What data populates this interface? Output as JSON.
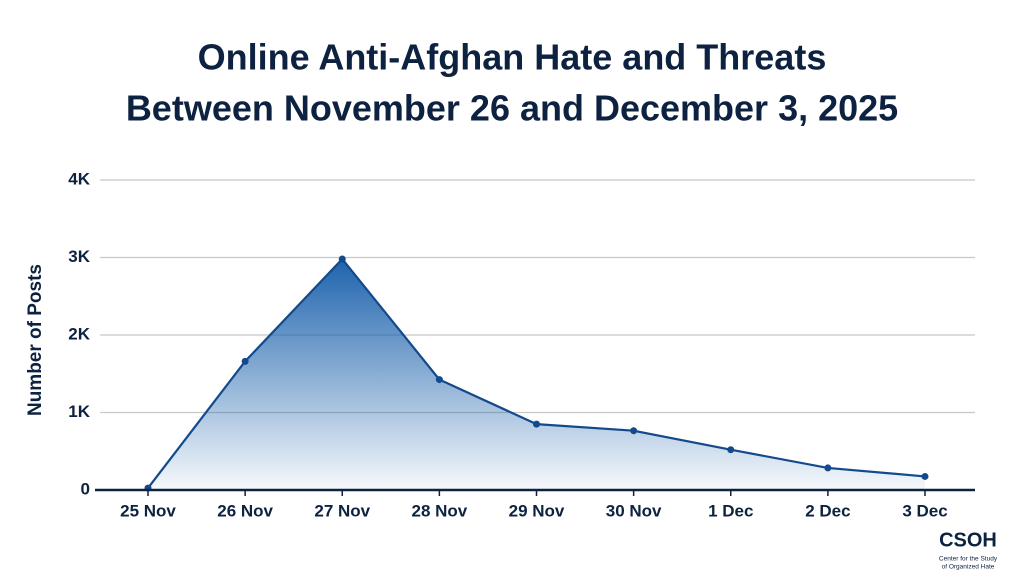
{
  "chart_data": {
    "type": "area",
    "title": [
      "Online Anti-Afghan Hate and Threats",
      "Between November 26 and December 3, 2025"
    ],
    "y_label": "Number of Posts",
    "categories": [
      "25 Nov",
      "26 Nov",
      "27 Nov",
      "28 Nov",
      "29 Nov",
      "30 Nov",
      "1 Dec",
      "2 Dec",
      "3 Dec"
    ],
    "series": [
      {
        "name": "Posts",
        "color": "#134a8c",
        "values": [
          25,
          1660,
          2980,
          1425,
          850,
          765,
          520,
          285,
          175
        ]
      }
    ],
    "ylim": [
      0,
      4000
    ],
    "yticks": [
      0,
      {
        "value": 1000,
        "label": "1K"
      },
      {
        "value": 2000,
        "label": "2K"
      },
      {
        "value": 3000,
        "label": "3K"
      },
      {
        "value": 4000,
        "label": "4K"
      }
    ],
    "grid": true,
    "logo": {
      "name": "CSOH",
      "tagline": [
        "Center for the Study",
        "of Organized Hate"
      ]
    }
  }
}
